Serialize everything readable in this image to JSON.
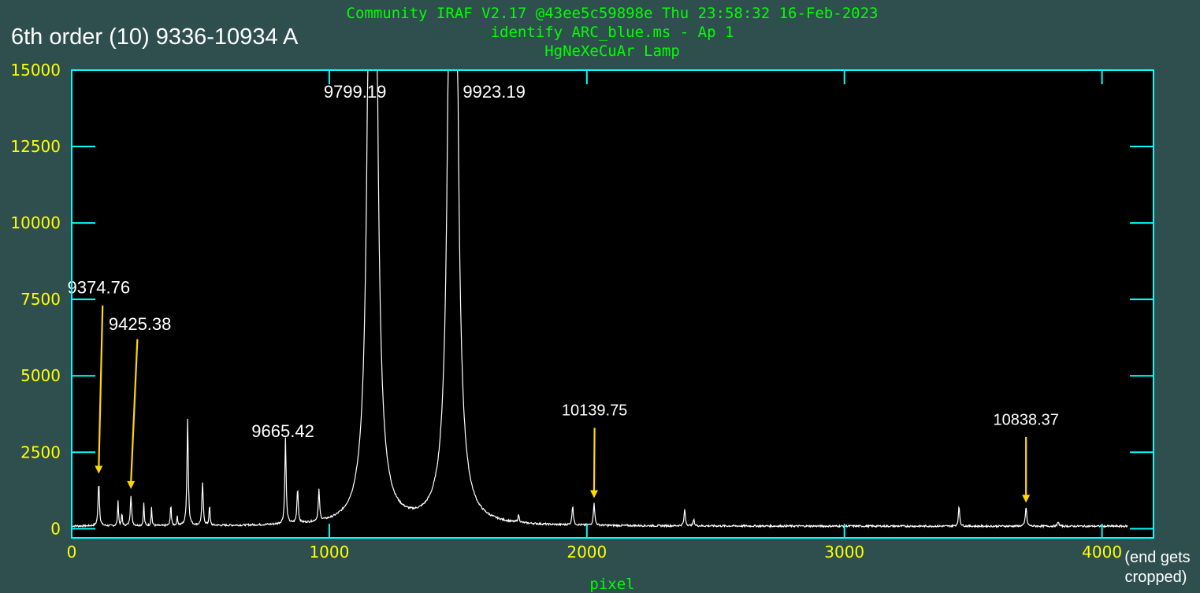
{
  "header": {
    "line1": "Community IRAF V2.17 @43ee5c59898e Thu 23:58:32 16-Feb-2023",
    "line2": "identify ARC_blue.ms - Ap 1",
    "line3": "HgNeXeCuAr Lamp"
  },
  "overlay_title": "6th order (10) 9336-10934 A",
  "side_note": [
    "(end gets",
    "cropped)"
  ],
  "colors": {
    "background": "#2f4f4f",
    "frame": "#00ffff",
    "ticks": "#ffff00",
    "header": "#00ff00",
    "spectrum": "#ffffff",
    "arrows": "#ffd700"
  },
  "chart_data": {
    "type": "line",
    "xlabel": "pixel",
    "ylabel": "",
    "xlim": [
      0,
      4200
    ],
    "ylim": [
      -300,
      15000
    ],
    "xticks": [
      0,
      1000,
      2000,
      3000,
      4000
    ],
    "yticks": [
      0,
      2500,
      5000,
      7500,
      10000,
      12500,
      15000
    ],
    "grid": false,
    "baseline": 80,
    "x_end": 4100,
    "peaks": [
      {
        "x": 105,
        "y": 1450,
        "w": 3
      },
      {
        "x": 180,
        "y": 850,
        "w": 2
      },
      {
        "x": 195,
        "y": 400,
        "w": 2
      },
      {
        "x": 230,
        "y": 1000,
        "w": 3
      },
      {
        "x": 280,
        "y": 750,
        "w": 2
      },
      {
        "x": 310,
        "y": 600,
        "w": 2
      },
      {
        "x": 385,
        "y": 750,
        "w": 2
      },
      {
        "x": 410,
        "y": 300,
        "w": 2
      },
      {
        "x": 450,
        "y": 3500,
        "w": 3
      },
      {
        "x": 508,
        "y": 1400,
        "w": 3
      },
      {
        "x": 535,
        "y": 700,
        "w": 2
      },
      {
        "x": 830,
        "y": 2800,
        "w": 3
      },
      {
        "x": 877,
        "y": 1150,
        "w": 3
      },
      {
        "x": 960,
        "y": 1000,
        "w": 3
      },
      {
        "x": 1168,
        "y": 60000,
        "w": 11
      },
      {
        "x": 1480,
        "y": 60000,
        "w": 11
      },
      {
        "x": 1735,
        "y": 250,
        "w": 3
      },
      {
        "x": 1945,
        "y": 650,
        "w": 3
      },
      {
        "x": 2028,
        "y": 750,
        "w": 3
      },
      {
        "x": 2380,
        "y": 550,
        "w": 3
      },
      {
        "x": 2415,
        "y": 200,
        "w": 3
      },
      {
        "x": 3445,
        "y": 650,
        "w": 3
      },
      {
        "x": 3705,
        "y": 650,
        "w": 3
      },
      {
        "x": 3830,
        "y": 150,
        "w": 3
      }
    ],
    "annotations": [
      {
        "text": "9374.76",
        "label_x": 105,
        "label_y": 7700,
        "arrow_from": [
          120,
          7300
        ],
        "arrow_to": [
          105,
          1800
        ],
        "size": "large"
      },
      {
        "text": "9425.38",
        "label_x": 265,
        "label_y": 6500,
        "arrow_from": [
          255,
          6200
        ],
        "arrow_to": [
          230,
          1300
        ],
        "size": "large"
      },
      {
        "text": "9665.42",
        "label_x": 820,
        "label_y": 3000,
        "size": "large"
      },
      {
        "text": "9799.19",
        "label_x": 1100,
        "label_y": 14100,
        "size": "large"
      },
      {
        "text": "9923.19",
        "label_x": 1640,
        "label_y": 14100,
        "size": "large"
      },
      {
        "text": "10139.75",
        "label_x": 2030,
        "label_y": 3700,
        "arrow_from": [
          2030,
          3300
        ],
        "arrow_to": [
          2028,
          1000
        ],
        "size": "small"
      },
      {
        "text": "10838.37",
        "label_x": 3705,
        "label_y": 3400,
        "arrow_from": [
          3705,
          3000
        ],
        "arrow_to": [
          3705,
          850
        ],
        "size": "small"
      }
    ]
  }
}
